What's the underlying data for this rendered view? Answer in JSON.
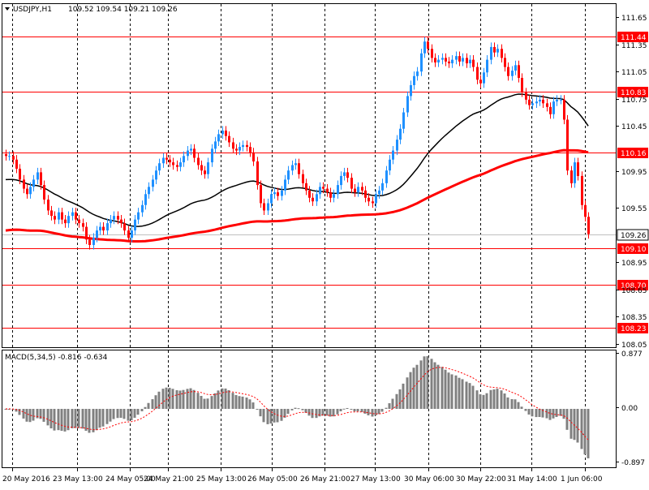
{
  "header": {
    "symbol": "USDJPY,H1",
    "ohlc": "109.52 109.54 109.21 109.26"
  },
  "macd": {
    "label": "MACD(5,34,5) -0.816 -0.634",
    "scale_labels": [
      "0.877",
      "0.00",
      "-0.897"
    ],
    "colors": {
      "hist": "#808080",
      "signal": "#ff0000"
    }
  },
  "price_scale": {
    "labels": [
      "111.65",
      "111.35",
      "111.05",
      "110.75",
      "110.45",
      "109.95",
      "109.55",
      "108.95",
      "108.65",
      "108.35",
      "108.05"
    ]
  },
  "levels": [
    {
      "value": 111.44,
      "label": "111.44"
    },
    {
      "value": 110.83,
      "label": "110.83"
    },
    {
      "value": 110.16,
      "label": "110.16"
    },
    {
      "value": 109.1,
      "label": "109.10"
    },
    {
      "value": 108.7,
      "label": "108.70"
    },
    {
      "value": 108.23,
      "label": "108.23"
    }
  ],
  "current_price": {
    "value": 109.26,
    "label": "109.26"
  },
  "time_labels": [
    "20 May 2016",
    "23 May 13:00",
    "24 May 05:00",
    "24 May 21:00",
    "25 May 13:00",
    "26 May 05:00",
    "26 May 21:00",
    "27 May 13:00",
    "30 May 06:00",
    "30 May 22:00",
    "31 May 14:00",
    "1 Jun 06:00"
  ],
  "colors": {
    "bull": "#1e90ff",
    "bear": "#ff0000",
    "level_line": "#ff0000",
    "ma_slow": "#ff0000",
    "ma_fast": "#000000",
    "label_bg": "#ff0000",
    "label_text": "#ffffff"
  },
  "chart_data": {
    "type": "candlestick",
    "symbol": "USDJPY",
    "timeframe": "H1",
    "ylim": [
      108.0,
      111.75
    ],
    "candles_close": [
      110.12,
      110.12,
      110.08,
      109.98,
      109.86,
      109.76,
      109.7,
      109.78,
      109.86,
      109.94,
      109.8,
      109.64,
      109.52,
      109.46,
      109.42,
      109.5,
      109.42,
      109.38,
      109.46,
      109.5,
      109.42,
      109.38,
      109.34,
      109.2,
      109.14,
      109.22,
      109.3,
      109.34,
      109.3,
      109.38,
      109.42,
      109.46,
      109.42,
      109.38,
      109.3,
      109.22,
      109.3,
      109.42,
      109.5,
      109.58,
      109.7,
      109.78,
      109.86,
      109.96,
      110.04,
      110.1,
      110.08,
      110.05,
      110.02,
      110.0,
      110.05,
      110.12,
      110.18,
      110.2,
      110.1,
      110.02,
      109.96,
      109.92,
      110.05,
      110.2,
      110.28,
      110.36,
      110.4,
      110.34,
      110.27,
      110.2,
      110.18,
      110.22,
      110.24,
      110.22,
      110.16,
      110.06,
      109.8,
      109.6,
      109.52,
      109.6,
      109.7,
      109.72,
      109.68,
      109.74,
      109.86,
      109.96,
      110.02,
      110.04,
      109.92,
      109.82,
      109.74,
      109.66,
      109.62,
      109.7,
      109.78,
      109.76,
      109.72,
      109.66,
      109.7,
      109.8,
      109.9,
      109.94,
      109.88,
      109.76,
      109.72,
      109.78,
      109.74,
      109.66,
      109.62,
      109.6,
      109.7,
      109.74,
      109.82,
      109.96,
      110.08,
      110.18,
      110.3,
      110.42,
      110.6,
      110.78,
      110.9,
      111.0,
      111.05,
      111.25,
      111.38,
      111.3,
      111.2,
      111.15,
      111.18,
      111.2,
      111.16,
      111.14,
      111.18,
      111.22,
      111.16,
      111.2,
      111.14,
      111.18,
      111.1,
      110.96,
      110.92,
      111.04,
      111.18,
      111.32,
      111.26,
      111.3,
      111.2,
      111.1,
      111.0,
      111.06,
      111.12,
      110.98,
      110.82,
      110.74,
      110.68,
      110.7,
      110.72,
      110.74,
      110.7,
      110.66,
      110.58,
      110.72,
      110.74,
      110.74,
      110.52,
      109.96,
      109.82,
      110.05,
      109.9,
      109.58,
      109.45,
      109.26
    ],
    "ma_slow": {
      "color": "#ff0000",
      "start": 109.3,
      "end": 110.16
    },
    "ma_fast": {
      "color": "#000000",
      "start": 109.86,
      "end": 110.45
    },
    "levels": [
      111.44,
      110.83,
      110.16,
      109.1,
      108.7,
      108.23
    ],
    "current": 109.26,
    "macd": {
      "params": "5,34,5",
      "main": -0.816,
      "signal": -0.634,
      "scale": [
        0.877,
        0.0,
        -0.897
      ]
    }
  }
}
